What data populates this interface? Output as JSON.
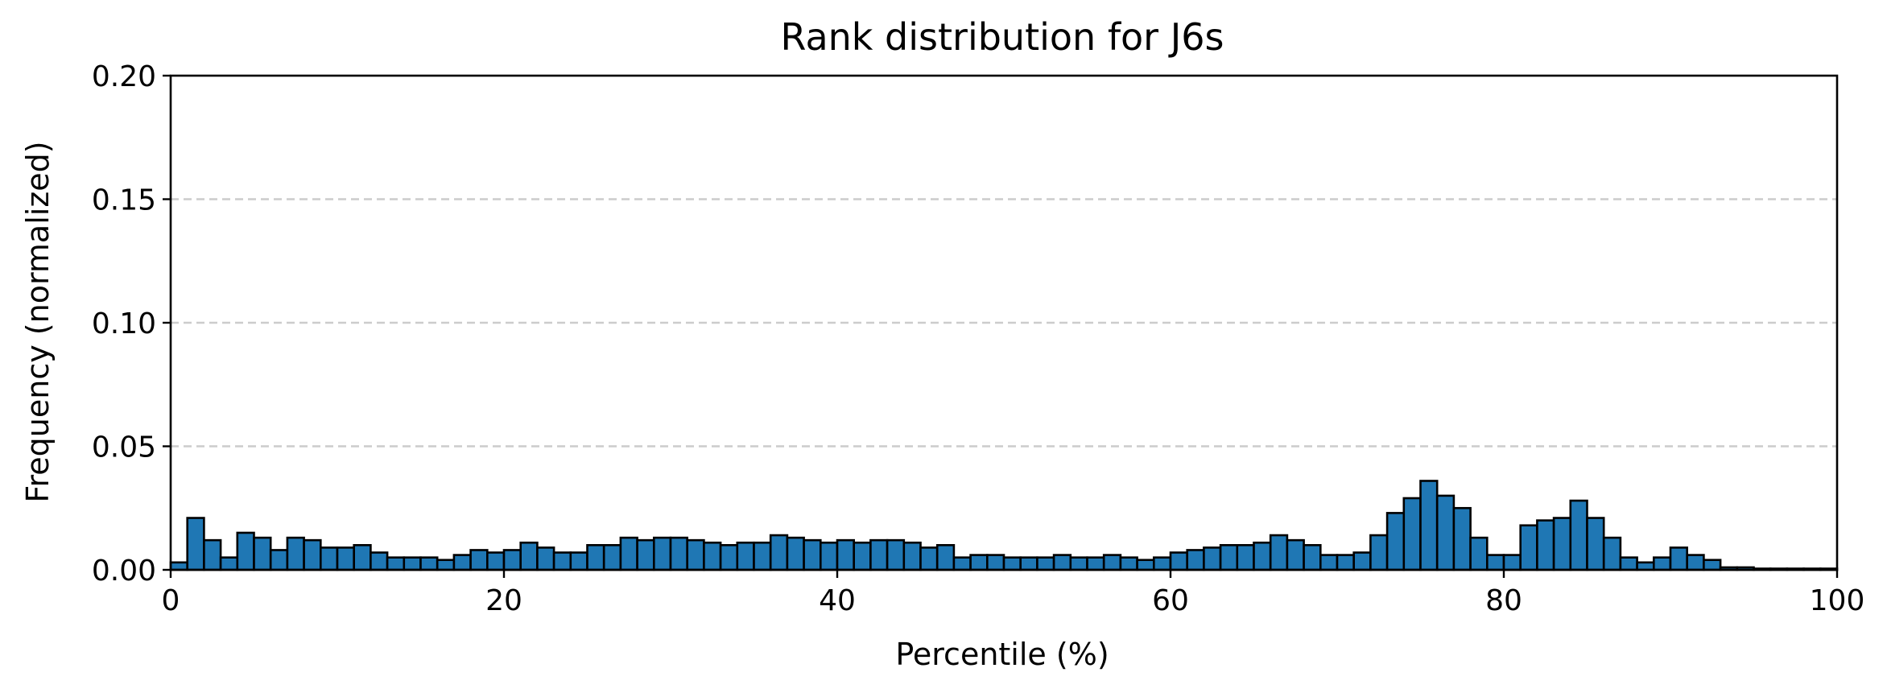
{
  "chart_data": {
    "type": "bar",
    "title": "Rank distribution for J6s",
    "xlabel": "Percentile (%)",
    "ylabel": "Frequency (normalized)",
    "xlim": [
      0,
      100
    ],
    "ylim": [
      0,
      0.2
    ],
    "xticks": [
      "0",
      "20",
      "40",
      "60",
      "80",
      "100"
    ],
    "yticks": [
      "0.00",
      "0.05",
      "0.10",
      "0.15",
      "0.20"
    ],
    "grid": "y-dashed",
    "bar_color": "#1f77b4",
    "bin_width": 1,
    "bin_start": 0,
    "values": [
      0.003,
      0.021,
      0.012,
      0.005,
      0.015,
      0.013,
      0.008,
      0.013,
      0.012,
      0.009,
      0.009,
      0.01,
      0.007,
      0.005,
      0.005,
      0.005,
      0.004,
      0.006,
      0.008,
      0.007,
      0.008,
      0.011,
      0.009,
      0.007,
      0.007,
      0.01,
      0.01,
      0.013,
      0.012,
      0.013,
      0.013,
      0.012,
      0.011,
      0.01,
      0.011,
      0.011,
      0.014,
      0.013,
      0.012,
      0.011,
      0.012,
      0.011,
      0.012,
      0.012,
      0.011,
      0.009,
      0.01,
      0.005,
      0.006,
      0.006,
      0.005,
      0.005,
      0.005,
      0.006,
      0.005,
      0.005,
      0.006,
      0.005,
      0.004,
      0.005,
      0.007,
      0.008,
      0.009,
      0.01,
      0.01,
      0.011,
      0.014,
      0.012,
      0.01,
      0.006,
      0.006,
      0.007,
      0.014,
      0.023,
      0.029,
      0.036,
      0.03,
      0.025,
      0.013,
      0.006,
      0.006,
      0.018,
      0.02,
      0.021,
      0.028,
      0.021,
      0.013,
      0.005,
      0.003,
      0.005,
      0.009,
      0.006,
      0.004,
      0.001,
      0.001,
      0.0005,
      0.0005,
      0.0005,
      0.0005,
      0.0005
    ]
  }
}
